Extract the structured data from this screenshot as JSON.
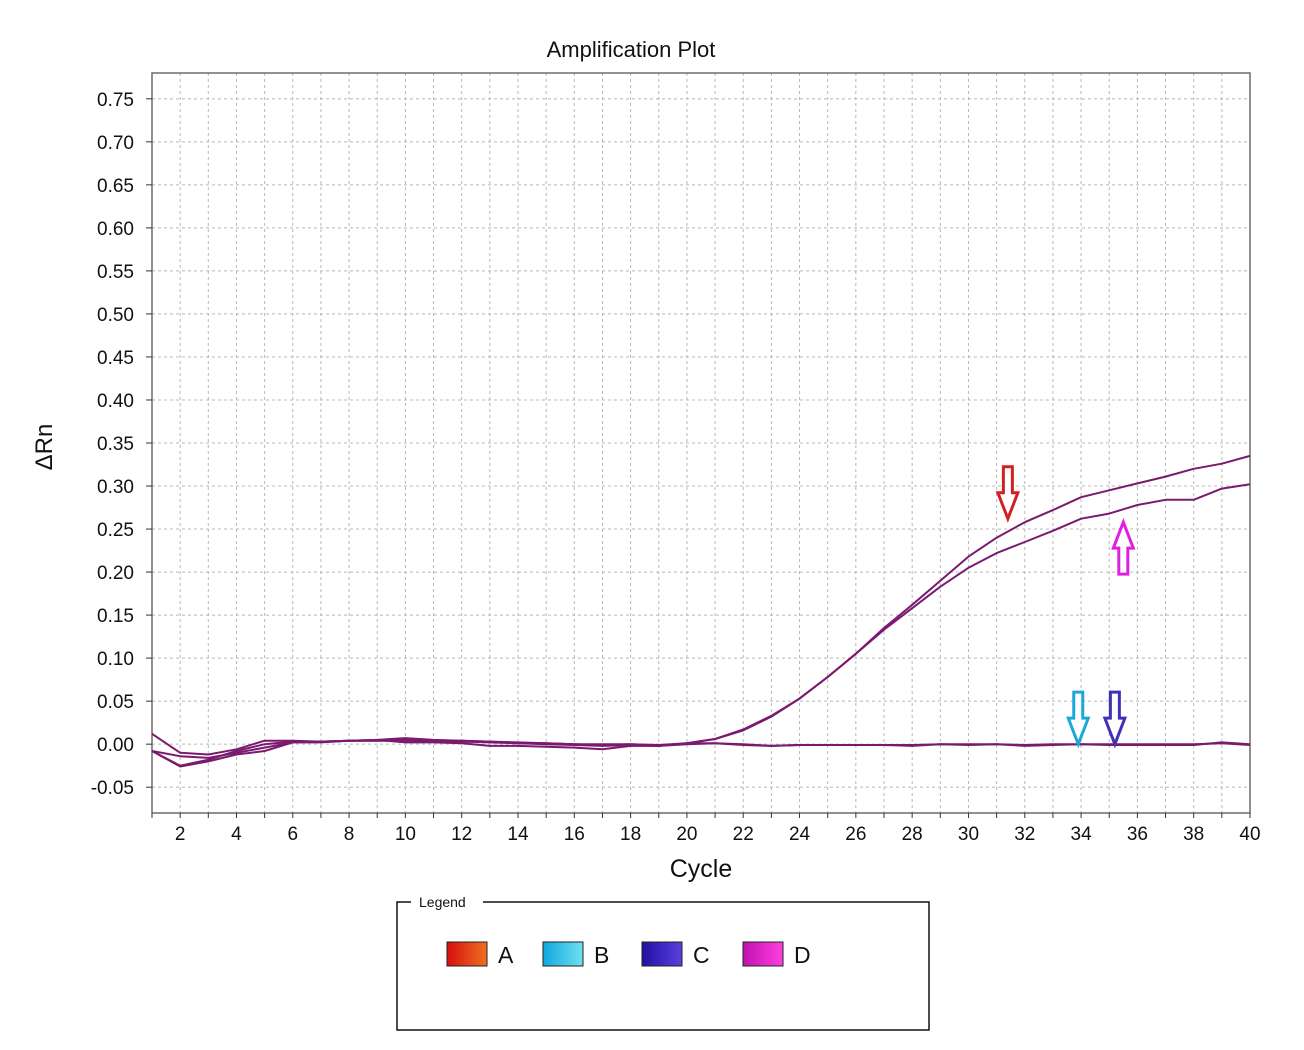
{
  "chart_data": {
    "type": "line",
    "title": "Amplification Plot",
    "xlabel": "Cycle",
    "ylabel": "ΔRn",
    "xlim": [
      1,
      40
    ],
    "ylim": [
      -0.08,
      0.78
    ],
    "x_ticks": [
      2,
      4,
      6,
      8,
      10,
      12,
      14,
      16,
      18,
      20,
      22,
      24,
      26,
      28,
      30,
      32,
      34,
      36,
      38,
      40
    ],
    "y_ticks": [
      -0.05,
      0.0,
      0.05,
      0.1,
      0.15,
      0.2,
      0.25,
      0.3,
      0.35,
      0.4,
      0.45,
      0.5,
      0.55,
      0.6,
      0.65,
      0.7,
      0.75
    ],
    "grid": true,
    "line_color": "#7a1a6e",
    "x": [
      1,
      2,
      3,
      4,
      5,
      6,
      7,
      8,
      9,
      10,
      11,
      12,
      13,
      14,
      15,
      16,
      17,
      18,
      19,
      20,
      21,
      22,
      23,
      24,
      25,
      26,
      27,
      28,
      29,
      30,
      31,
      32,
      33,
      34,
      35,
      36,
      37,
      38,
      39,
      40
    ],
    "series": [
      {
        "values": [
          0.012,
          -0.01,
          -0.012,
          -0.006,
          0.004,
          0.004,
          0.003,
          0.004,
          0.004,
          0.005,
          0.003,
          0.003,
          0.002,
          0.001,
          0.001,
          0.0,
          -0.001,
          0.0,
          -0.002,
          0.001,
          0.006,
          0.017,
          0.033,
          0.053,
          0.078,
          0.105,
          0.135,
          0.162,
          0.19,
          0.218,
          0.24,
          0.258,
          0.272,
          0.287,
          0.295,
          0.303,
          0.311,
          0.32,
          0.326,
          0.335
        ]
      },
      {
        "values": [
          -0.008,
          -0.025,
          -0.018,
          -0.008,
          0.0,
          0.003,
          0.003,
          0.004,
          0.004,
          0.004,
          0.004,
          0.004,
          0.003,
          0.002,
          0.001,
          0.0,
          0.0,
          0.0,
          -0.001,
          0.001,
          0.006,
          0.016,
          0.032,
          0.053,
          0.078,
          0.105,
          0.133,
          0.158,
          0.183,
          0.205,
          0.222,
          0.235,
          0.248,
          0.262,
          0.268,
          0.278,
          0.284,
          0.284,
          0.297,
          0.302
        ]
      },
      {
        "values": [
          -0.008,
          -0.026,
          -0.02,
          -0.012,
          -0.008,
          0.002,
          0.002,
          0.004,
          0.005,
          0.002,
          0.002,
          0.001,
          -0.002,
          -0.002,
          -0.003,
          -0.004,
          -0.006,
          -0.002,
          -0.002,
          0.001,
          0.001,
          0.0,
          -0.002,
          -0.001,
          -0.001,
          -0.001,
          -0.001,
          -0.002,
          0.0,
          0.0,
          0.0,
          -0.001,
          0.0,
          0.0,
          0.0,
          0.0,
          0.0,
          0.0,
          0.001,
          -0.001
        ]
      },
      {
        "values": [
          -0.008,
          -0.014,
          -0.016,
          -0.01,
          -0.004,
          0.002,
          0.003,
          0.004,
          0.005,
          0.007,
          0.005,
          0.004,
          0.003,
          0.001,
          0.0,
          -0.001,
          -0.002,
          -0.001,
          -0.002,
          0.0,
          0.001,
          -0.001,
          -0.002,
          -0.001,
          -0.001,
          -0.001,
          -0.001,
          -0.001,
          0.0,
          -0.001,
          0.0,
          -0.002,
          -0.001,
          0.0,
          -0.001,
          -0.001,
          -0.001,
          -0.001,
          0.002,
          0.0
        ]
      }
    ],
    "arrows": [
      {
        "color": "#d42020",
        "direction": "down",
        "x": 31.4,
        "tip_y": 0.262
      },
      {
        "color": "#e020e0",
        "direction": "up",
        "x": 35.5,
        "tip_y": 0.258
      },
      {
        "color": "#1aa8d8",
        "direction": "down",
        "x": 33.9,
        "tip_y": 0.0
      },
      {
        "color": "#4030b8",
        "direction": "down",
        "x": 35.2,
        "tip_y": 0.0
      }
    ],
    "legend": {
      "title": "Legend",
      "position": "bottom-center",
      "entries": [
        {
          "label": "A",
          "color_start": "#d41010",
          "color_end": "#f07020"
        },
        {
          "label": "B",
          "color_start": "#10a8e0",
          "color_end": "#70e0f0"
        },
        {
          "label": "C",
          "color_start": "#2010a0",
          "color_end": "#5a40e0"
        },
        {
          "label": "D",
          "color_start": "#c010b0",
          "color_end": "#ff40e0"
        }
      ]
    }
  }
}
